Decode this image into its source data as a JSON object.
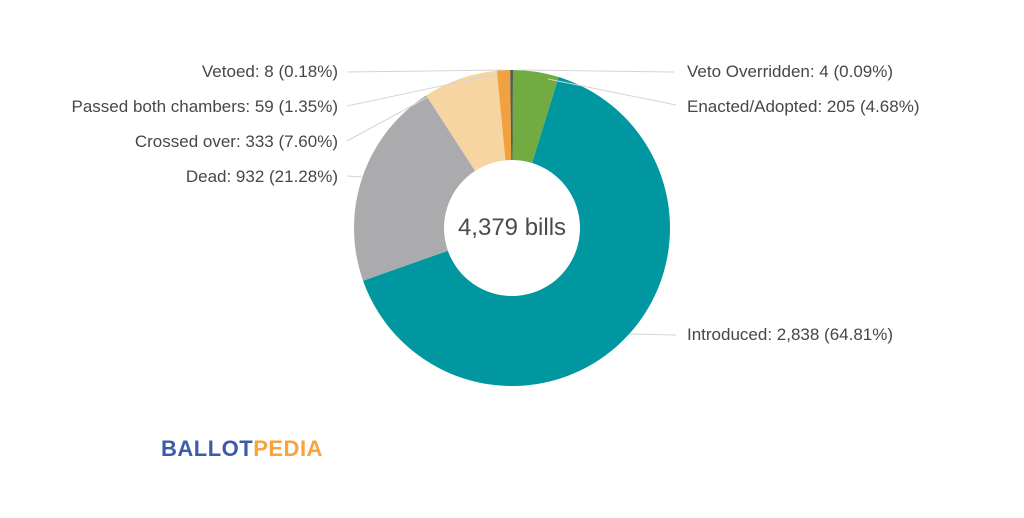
{
  "chart_data": {
    "type": "pie",
    "subtype": "donut",
    "center_label": "4,379 bills",
    "total": 4379,
    "direction": "clockwise",
    "start_angle_deg": 0,
    "legend_position": "callout-labels",
    "slices": [
      {
        "label": "Veto Overridden",
        "value": 4,
        "pct": 0.09,
        "display": "Veto Overridden: 4 (0.09%)",
        "color": "#3f4245",
        "callout_side": "right"
      },
      {
        "label": "Enacted/Adopted",
        "value": 205,
        "pct": 4.68,
        "display": "Enacted/Adopted: 205 (4.68%)",
        "color": "#71ab42",
        "callout_side": "right"
      },
      {
        "label": "Introduced",
        "value": 2838,
        "pct": 64.81,
        "display": "Introduced: 2,838 (64.81%)",
        "color": "#0097a0",
        "callout_side": "right"
      },
      {
        "label": "Dead",
        "value": 932,
        "pct": 21.28,
        "display": "Dead: 932 (21.28%)",
        "color": "#ababad",
        "callout_side": "left"
      },
      {
        "label": "Crossed over",
        "value": 333,
        "pct": 7.6,
        "display": "Crossed over: 333 (7.60%)",
        "color": "#f6d5a2",
        "callout_side": "left"
      },
      {
        "label": "Passed both chambers",
        "value": 59,
        "pct": 1.35,
        "display": "Passed both chambers: 59 (1.35%)",
        "color": "#efa23f",
        "callout_side": "left"
      },
      {
        "label": "Vetoed",
        "value": 8,
        "pct": 0.18,
        "display": "Vetoed: 8 (0.18%)",
        "color": "#5a5a52",
        "callout_side": "left"
      }
    ]
  },
  "branding": {
    "logo_part1": "BALLOT",
    "logo_part2": "PEDIA",
    "logo_color_blue": "#3c5caa",
    "logo_color_orange": "#f8a33d"
  },
  "style": {
    "leader_line_color": "#d4d4d4",
    "label_text_color": "#474747",
    "center_text_color": "#4b4b4b",
    "background": "#ffffff"
  }
}
